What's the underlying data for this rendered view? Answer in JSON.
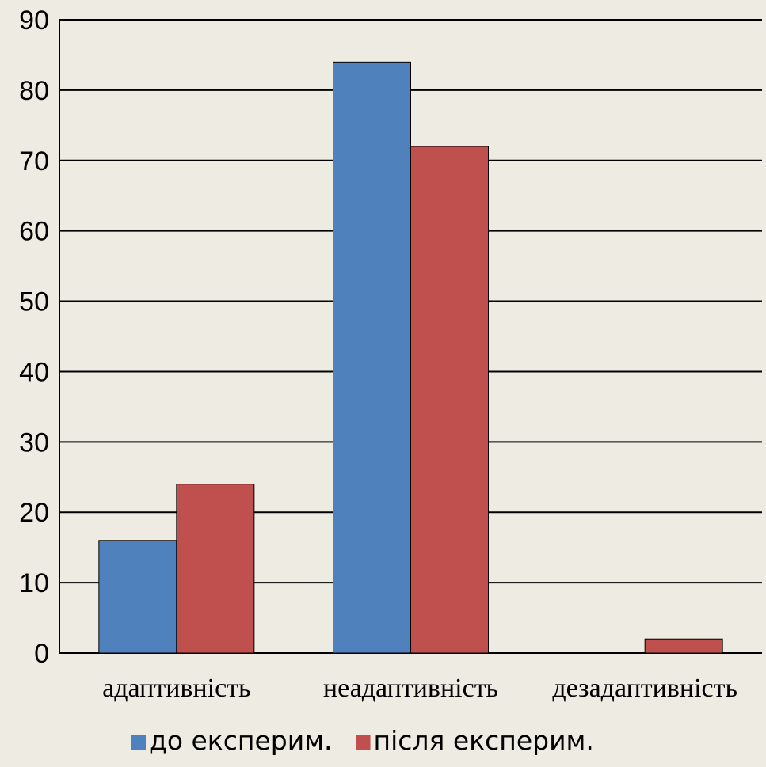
{
  "chart_data": {
    "type": "bar",
    "categories": [
      "адаптивність",
      "неадаптивність",
      "дезадаптивність"
    ],
    "series": [
      {
        "name": "до експерим.",
        "color": "#4f81bd",
        "values": [
          16,
          84,
          0
        ]
      },
      {
        "name": "після експерим.",
        "color": "#c0504d",
        "values": [
          24,
          72,
          2
        ]
      }
    ],
    "ylim": [
      0,
      90
    ],
    "yticks": [
      0,
      10,
      20,
      30,
      40,
      50,
      60,
      70,
      80,
      90
    ],
    "grid": true,
    "legend": "bottom",
    "background": "#eeebe2"
  }
}
